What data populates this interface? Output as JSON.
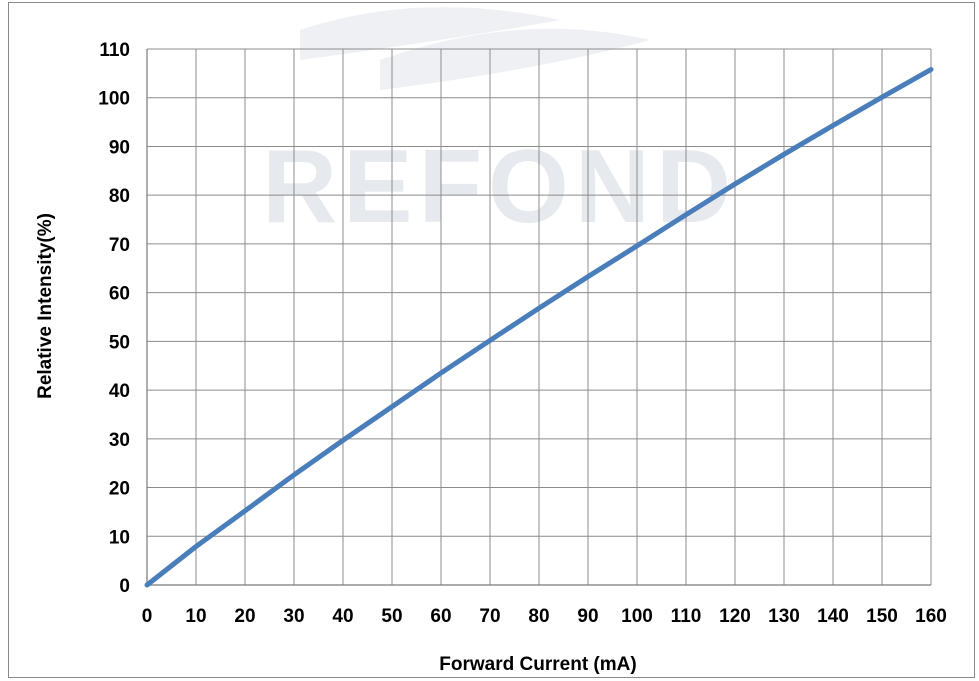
{
  "chart_data": {
    "type": "line",
    "title": "",
    "xlabel": "Forward Current (mA)",
    "ylabel": "Relative Intensity(%)",
    "xlim": [
      0,
      160
    ],
    "ylim": [
      0,
      110
    ],
    "x_ticks": [
      0,
      10,
      20,
      30,
      40,
      50,
      60,
      70,
      80,
      90,
      100,
      110,
      120,
      130,
      140,
      150,
      160
    ],
    "y_ticks": [
      0,
      10,
      20,
      30,
      40,
      50,
      60,
      70,
      80,
      90,
      100,
      110
    ],
    "grid": true,
    "colors": {
      "line": "#4a7ebb",
      "grid": "#8c8c8c",
      "watermark": "#e6e9ee"
    },
    "series": [
      {
        "x": [
          0,
          10,
          20,
          30,
          40,
          50,
          60,
          70,
          80,
          90,
          100,
          110,
          120,
          130,
          140,
          150,
          160
        ],
        "y": [
          0,
          7.9,
          15.2,
          22.6,
          29.7,
          36.6,
          43.5,
          50.2,
          56.8,
          63.3,
          69.6,
          76.0,
          82.3,
          88.4,
          94.3,
          100.1,
          105.8
        ]
      }
    ]
  },
  "watermark": {
    "text": "REFOND"
  }
}
